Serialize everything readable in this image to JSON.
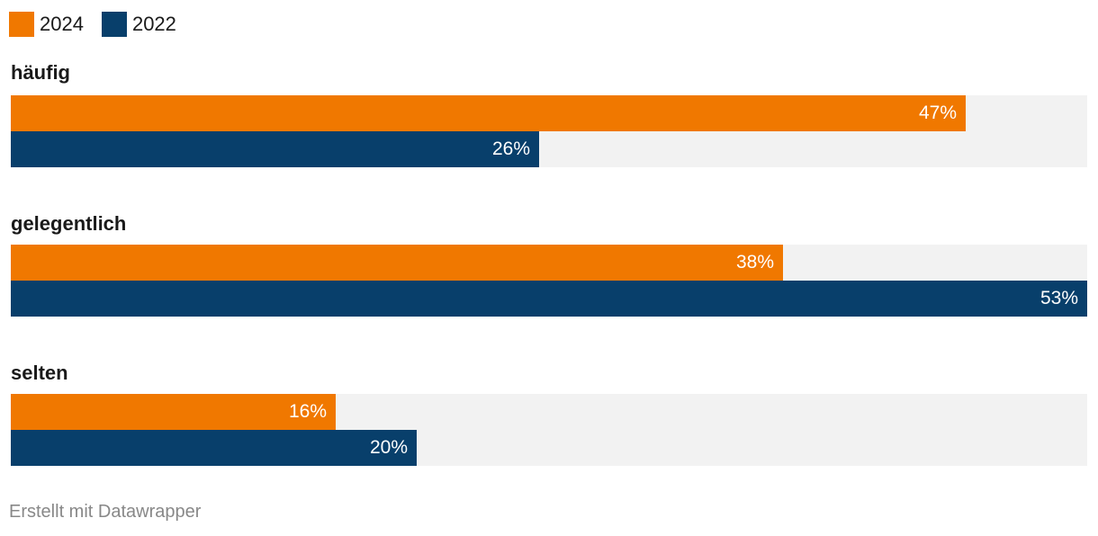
{
  "chart_data": {
    "type": "bar",
    "orientation": "horizontal",
    "categories": [
      "häufig",
      "gelegentlich",
      "selten"
    ],
    "series": [
      {
        "name": "2024",
        "color": "#f07800",
        "values": [
          47,
          38,
          16
        ],
        "labels": [
          "47%",
          "38%",
          "16%"
        ]
      },
      {
        "name": "2022",
        "color": "#083f6b",
        "values": [
          26,
          53,
          20
        ],
        "labels": [
          "26%",
          "53%",
          "20%"
        ]
      }
    ],
    "xlim": [
      0,
      53
    ],
    "value_suffix": "%",
    "legend_position": "top-left",
    "track_color": "#f2f2f2"
  },
  "footer": {
    "credit": "Erstellt mit Datawrapper"
  }
}
